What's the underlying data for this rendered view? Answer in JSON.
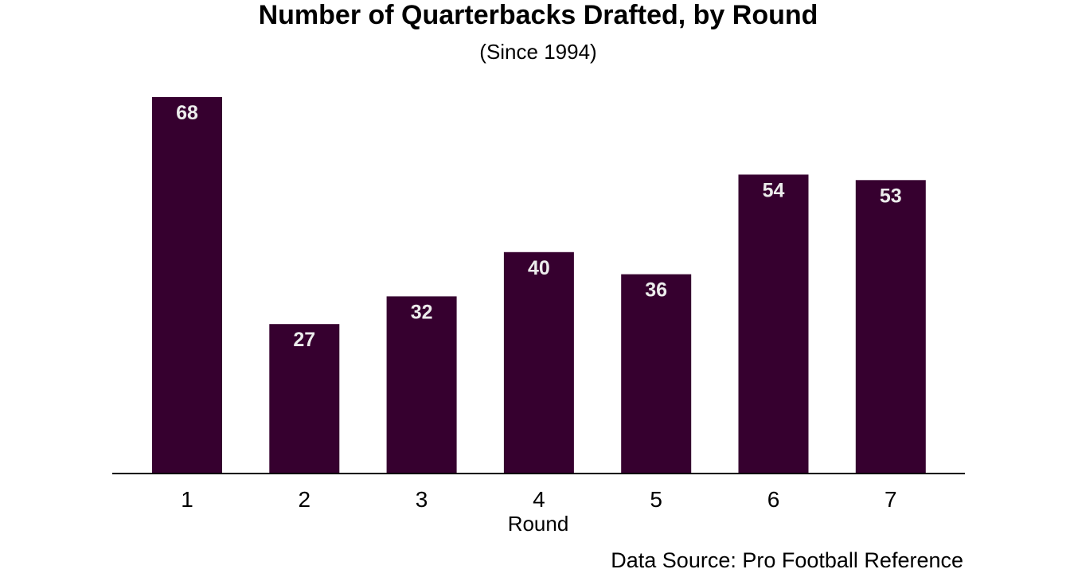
{
  "chart_data": {
    "type": "bar",
    "title": "Number of Quarterbacks Drafted, by Round",
    "subtitle": "(Since 1994)",
    "xlabel": "Round",
    "ylabel": "",
    "categories": [
      "1",
      "2",
      "3",
      "4",
      "5",
      "6",
      "7"
    ],
    "values": [
      68,
      27,
      32,
      40,
      36,
      54,
      53
    ],
    "ylim": [
      0,
      68
    ],
    "grid": false,
    "legend": "none",
    "bar_color": "#36002f",
    "label_color": "#ececec",
    "source": "Data Source: Pro Football Reference"
  }
}
